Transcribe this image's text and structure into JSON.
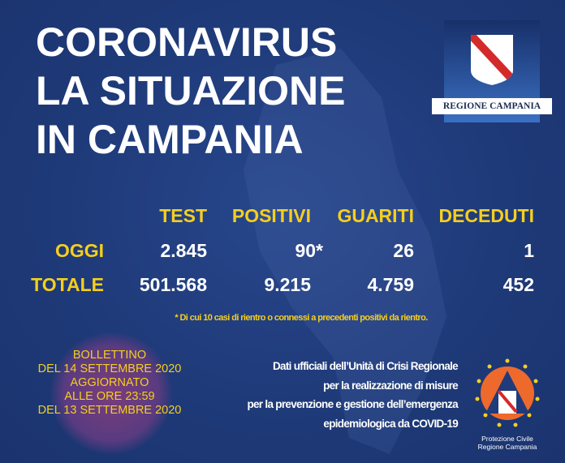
{
  "title": {
    "line1": "CORONAVIRUS",
    "line2": "LA SITUAZIONE",
    "line3": "IN CAMPANIA"
  },
  "logo": {
    "text": "REGIONE CAMPANIA"
  },
  "table": {
    "headers": [
      "TEST",
      "POSITIVI",
      "GUARITI",
      "DECEDUTI"
    ],
    "rows": [
      {
        "label": "OGGI",
        "values": [
          "2.845",
          "90*",
          "26",
          "1"
        ]
      },
      {
        "label": "TOTALE",
        "values": [
          "501.568",
          "9.215",
          "4.759",
          "452"
        ]
      }
    ]
  },
  "footnote": "* Di cui 10 casi di rientro o connessi a precedenti positivi da rientro.",
  "bulletin": [
    "BOLLETTINO",
    "DEL 14 SETTEMBRE 2020",
    "AGGIORNATO",
    "ALLE ORE 23:59",
    "DEL 13 SETTEMBRE 2020"
  ],
  "credits": [
    "Dati ufficiali dell’Unità di Crisi Regionale",
    "per la realizzazione di misure",
    "per la prevenzione e gestione dell’emergenza",
    "epidemiologica da COVID-19"
  ],
  "protezione": {
    "line1": "Protezione Civile",
    "line2": "Regione Campania"
  },
  "colors": {
    "background": "#1f3b7c",
    "accent": "#f5cf1e",
    "text": "#ffffff"
  }
}
